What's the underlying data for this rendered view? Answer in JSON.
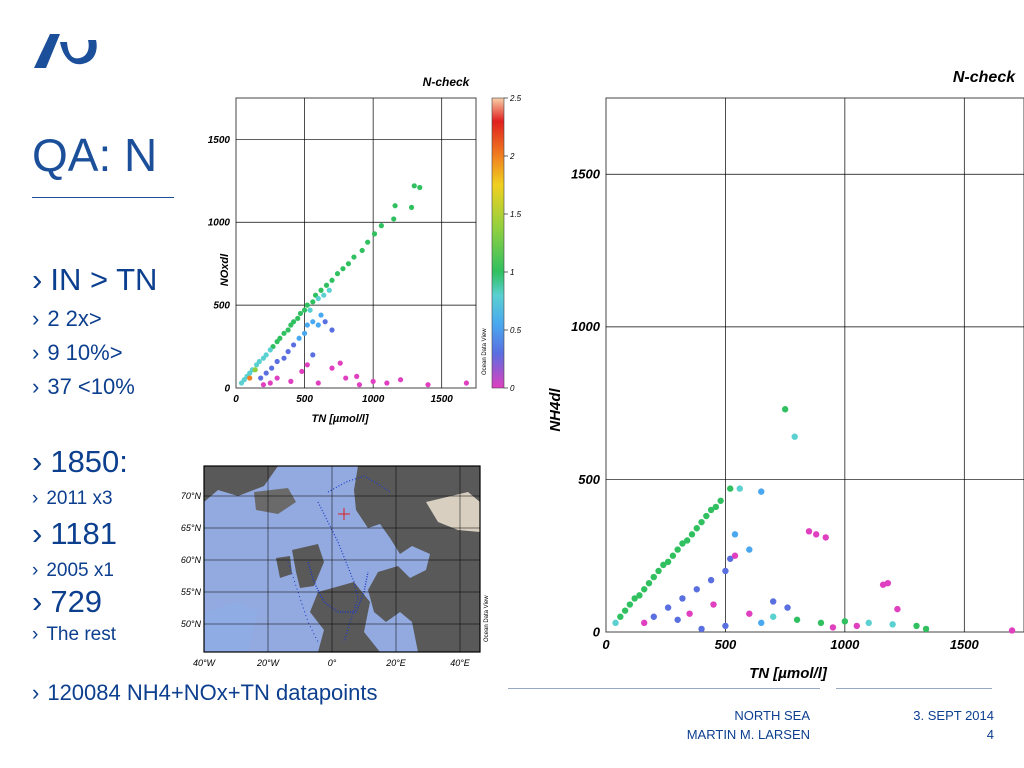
{
  "slide": {
    "title": "QA: N",
    "bullets": [
      {
        "text": "IN > TN",
        "size": "big"
      },
      {
        "text": "2 2x>",
        "size": "mid"
      },
      {
        "text": "9 10%>",
        "size": "mid"
      },
      {
        "text": "37 <10%",
        "size": "mid"
      },
      {
        "text": "1850:",
        "size": "big"
      },
      {
        "text": "2011 x3",
        "size": "small"
      },
      {
        "text": "1181",
        "size": "big"
      },
      {
        "text": "2005 x1",
        "size": "small"
      },
      {
        "text": "729",
        "size": "big"
      },
      {
        "text": "The rest",
        "size": "small"
      },
      {
        "text": "120084 NH4+NOx+TN datapoints",
        "size": "mid"
      }
    ],
    "bullet_marker": "›"
  },
  "footer": {
    "left_line1": "NORTH SEA",
    "left_line2": "MARTIN M. LARSEN",
    "right_line1": "3. SEPT 2014",
    "right_line2": "4"
  },
  "colors": {
    "accent": "#0d3f8f",
    "rule": "#9aa9c3"
  },
  "colorbar": {
    "ticks": [
      "2.5",
      "2",
      "1.5",
      "1",
      "0.5",
      "0"
    ],
    "tick_values": [
      2.5,
      2,
      1.5,
      1,
      0.5,
      0
    ],
    "label": "Ocean Data View"
  },
  "chart_data": [
    {
      "type": "scatter",
      "title": "N-check",
      "xlabel": "TN [µmol/l]",
      "ylabel": "NOxdl",
      "xlim": [
        0,
        1750
      ],
      "ylim": [
        0,
        1750
      ],
      "xticks": [
        0,
        500,
        1000,
        1500
      ],
      "xtick_labels": [
        "0",
        "500",
        "1000",
        "1500"
      ],
      "yticks": [
        0,
        500,
        1000,
        1500
      ],
      "ytick_labels": [
        "0",
        "500",
        "1000",
        "1500"
      ],
      "grid": true,
      "color_scale": "ratio 0–2.5",
      "points": [
        [
          1300,
          1220,
          1.3
        ],
        [
          1340,
          1210,
          1.3
        ],
        [
          1160,
          1100,
          1.3
        ],
        [
          1280,
          1090,
          1.3
        ],
        [
          1150,
          1020,
          1.3
        ],
        [
          1010,
          930,
          1.3
        ],
        [
          1060,
          980,
          1.2
        ],
        [
          960,
          880,
          1.3
        ],
        [
          920,
          830,
          1.2
        ],
        [
          860,
          790,
          1.2
        ],
        [
          820,
          750,
          1.3
        ],
        [
          780,
          720,
          1.2
        ],
        [
          740,
          690,
          1.2
        ],
        [
          700,
          650,
          1.2
        ],
        [
          660,
          620,
          1.2
        ],
        [
          620,
          590,
          1.1
        ],
        [
          580,
          560,
          1.2
        ],
        [
          560,
          520,
          1.1
        ],
        [
          520,
          500,
          1.1
        ],
        [
          500,
          470,
          1.1
        ],
        [
          470,
          450,
          1.0
        ],
        [
          450,
          420,
          1.1
        ],
        [
          420,
          400,
          1.0
        ],
        [
          400,
          380,
          1.0
        ],
        [
          380,
          350,
          1.0
        ],
        [
          350,
          330,
          1.0
        ],
        [
          320,
          300,
          1.0
        ],
        [
          300,
          280,
          1.0
        ],
        [
          270,
          250,
          1.0
        ],
        [
          250,
          230,
          0.9
        ],
        [
          220,
          200,
          0.9
        ],
        [
          200,
          180,
          0.9
        ],
        [
          170,
          160,
          0.9
        ],
        [
          150,
          140,
          0.9
        ],
        [
          120,
          110,
          0.9
        ],
        [
          100,
          90,
          0.9
        ],
        [
          80,
          70,
          0.9
        ],
        [
          60,
          50,
          0.9
        ],
        [
          40,
          30,
          0.8
        ],
        [
          540,
          470,
          0.9
        ],
        [
          600,
          540,
          0.8
        ],
        [
          640,
          560,
          0.9
        ],
        [
          680,
          590,
          0.8
        ],
        [
          560,
          400,
          0.7
        ],
        [
          600,
          380,
          0.7
        ],
        [
          520,
          380,
          0.6
        ],
        [
          500,
          330,
          0.6
        ],
        [
          460,
          300,
          0.6
        ],
        [
          620,
          440,
          0.7
        ],
        [
          420,
          260,
          0.5
        ],
        [
          380,
          220,
          0.5
        ],
        [
          350,
          180,
          0.4
        ],
        [
          300,
          160,
          0.4
        ],
        [
          260,
          120,
          0.3
        ],
        [
          220,
          90,
          0.3
        ],
        [
          180,
          60,
          0.3
        ],
        [
          650,
          400,
          0.5
        ],
        [
          700,
          350,
          0.4
        ],
        [
          560,
          200,
          0.3
        ],
        [
          520,
          140,
          0.2
        ],
        [
          480,
          100,
          0.2
        ],
        [
          300,
          60,
          0.2
        ],
        [
          250,
          30,
          0.2
        ],
        [
          200,
          20,
          0.2
        ],
        [
          400,
          40,
          0.2
        ],
        [
          600,
          30,
          0.2
        ],
        [
          700,
          120,
          0.1
        ],
        [
          800,
          60,
          0.1
        ],
        [
          900,
          20,
          0.1
        ],
        [
          1000,
          40,
          0.1
        ],
        [
          1100,
          30,
          0.1
        ],
        [
          1200,
          50,
          0.1
        ],
        [
          1400,
          20,
          0.1
        ],
        [
          1680,
          30,
          0.1
        ],
        [
          880,
          70,
          0.1
        ],
        [
          760,
          150,
          0.1
        ],
        [
          100,
          60,
          2.0
        ],
        [
          140,
          110,
          1.7
        ]
      ]
    },
    {
      "type": "scatter",
      "title": "N-check",
      "xlabel": "TN [µmol/l]",
      "ylabel": "NH4dl",
      "xlim": [
        0,
        1750
      ],
      "ylim": [
        0,
        1750
      ],
      "xticks": [
        0,
        500,
        1000,
        1500
      ],
      "xtick_labels": [
        "0",
        "500",
        "1000",
        "1500"
      ],
      "yticks": [
        0,
        500,
        1000,
        1500
      ],
      "ytick_labels": [
        "0",
        "500",
        "1000",
        "1500"
      ],
      "grid": true,
      "color_scale": "ratio 0–2.5",
      "points": [
        [
          750,
          730,
          1.0
        ],
        [
          790,
          640,
          0.9
        ],
        [
          650,
          460,
          0.7
        ],
        [
          560,
          470,
          0.9
        ],
        [
          520,
          470,
          1.0
        ],
        [
          480,
          430,
          1.0
        ],
        [
          460,
          410,
          1.0
        ],
        [
          440,
          400,
          1.0
        ],
        [
          420,
          380,
          1.0
        ],
        [
          400,
          360,
          1.0
        ],
        [
          380,
          340,
          1.0
        ],
        [
          360,
          320,
          1.0
        ],
        [
          340,
          300,
          1.0
        ],
        [
          320,
          290,
          1.0
        ],
        [
          300,
          270,
          1.0
        ],
        [
          280,
          250,
          1.0
        ],
        [
          260,
          230,
          1.0
        ],
        [
          240,
          220,
          1.0
        ],
        [
          220,
          200,
          1.0
        ],
        [
          200,
          180,
          1.0
        ],
        [
          180,
          160,
          1.0
        ],
        [
          160,
          140,
          1.0
        ],
        [
          140,
          120,
          1.0
        ],
        [
          120,
          110,
          1.0
        ],
        [
          100,
          90,
          1.0
        ],
        [
          80,
          70,
          1.0
        ],
        [
          60,
          50,
          1.0
        ],
        [
          40,
          30,
          0.9
        ],
        [
          540,
          320,
          0.7
        ],
        [
          600,
          270,
          0.6
        ],
        [
          520,
          240,
          0.5
        ],
        [
          500,
          200,
          0.5
        ],
        [
          440,
          170,
          0.4
        ],
        [
          380,
          140,
          0.4
        ],
        [
          320,
          110,
          0.3
        ],
        [
          260,
          80,
          0.3
        ],
        [
          200,
          50,
          0.3
        ],
        [
          160,
          30,
          0.2
        ],
        [
          540,
          250,
          0.2
        ],
        [
          880,
          320,
          0.2
        ],
        [
          920,
          310,
          0.2
        ],
        [
          850,
          330,
          0.2
        ],
        [
          1160,
          155,
          0.1
        ],
        [
          1180,
          160,
          0.1
        ],
        [
          1220,
          75,
          0.1
        ],
        [
          600,
          60,
          0.2
        ],
        [
          700,
          50,
          0.8
        ],
        [
          800,
          40,
          1.0
        ],
        [
          900,
          30,
          1.0
        ],
        [
          1000,
          35,
          1.0
        ],
        [
          1100,
          30,
          0.9
        ],
        [
          1200,
          25,
          0.9
        ],
        [
          1300,
          20,
          1.0
        ],
        [
          1340,
          10,
          1.0
        ],
        [
          650,
          30,
          0.7
        ],
        [
          500,
          20,
          0.5
        ],
        [
          400,
          10,
          0.3
        ],
        [
          300,
          40,
          0.3
        ],
        [
          1050,
          20,
          0.1
        ],
        [
          950,
          15,
          0.1
        ],
        [
          1700,
          5,
          0.1
        ],
        [
          700,
          100,
          0.5
        ],
        [
          760,
          80,
          0.4
        ],
        [
          450,
          90,
          0.2
        ],
        [
          350,
          60,
          0.2
        ]
      ]
    }
  ],
  "map": {
    "lat_labels": [
      "70°N",
      "65°N",
      "60°N",
      "55°N",
      "50°N"
    ],
    "lon_labels": [
      "40°W",
      "20°W",
      "0°",
      "20°E",
      "40°E"
    ],
    "label": "Ocean Data View"
  }
}
